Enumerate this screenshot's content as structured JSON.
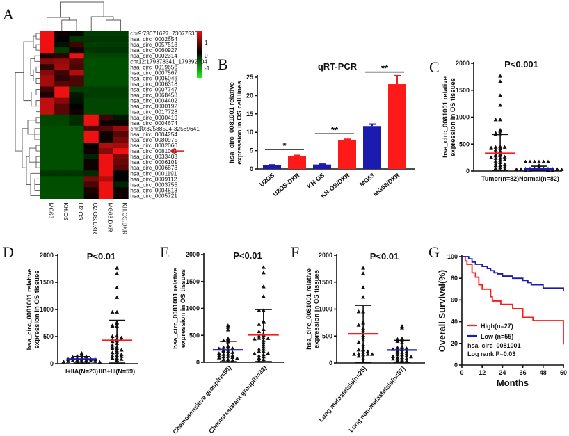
{
  "panels": {
    "A": "A",
    "B": "B",
    "C": "C",
    "D": "D",
    "E": "E",
    "F": "F",
    "G": "G"
  },
  "chart_data": [
    {
      "id": "A",
      "type": "heatmap",
      "title": "",
      "columns": [
        "MG63",
        "KH.OS",
        "U2.OS",
        "U2.OS.DXR",
        "MG63.DXR",
        "KH.OS.DXR"
      ],
      "rows": [
        "chr9:73071627_73077536",
        "hsa_circ_0002654",
        "hsa_circ_0057518",
        "hsa_circ_0060927",
        "hsa_circ_0002314",
        "chr12:179378341_179392104",
        "hsa_circ_0019656",
        "hsa_circ_0007567",
        "hsa_circ_0005046",
        "hsa_circ_0006318",
        "hsa_circ_0007747",
        "hsa_circ_0068458",
        "hsa_circ_0004402",
        "hsa_circ_0000192",
        "hsa_circ_0017728",
        "hsa_circ_0000419",
        "hsa_circ_0004674",
        "chr10:32588594-32589641",
        "hsa_circ_0004254",
        "hsa_circ_0080975",
        "hsa_circ_0002060",
        "hsa_circ_0081001",
        "hsa_circ_0033403",
        "hsa_circ_0006101",
        "hsa_circ_0006873",
        "hsa_circ_0001191",
        "hsa_circ_0009112",
        "hsa_circ_0003755",
        "hsa_circ_0004513",
        "hsa_circ_0005721"
      ],
      "values": [
        [
          1.8,
          0.1,
          -0.1,
          -0.7,
          -0.7,
          -0.7
        ],
        [
          1.8,
          0.0,
          -0.6,
          -0.6,
          -0.6,
          -0.6
        ],
        [
          1.8,
          -0.2,
          0.4,
          -0.7,
          -0.7,
          -0.7
        ],
        [
          1.8,
          -0.7,
          0.1,
          -0.6,
          -0.6,
          -0.6
        ],
        [
          0.2,
          0.3,
          1.8,
          -0.8,
          -0.8,
          -0.8
        ],
        [
          0.9,
          1.0,
          0.6,
          -0.9,
          -0.9,
          -0.9
        ],
        [
          0.3,
          1.1,
          0.5,
          -0.9,
          -0.9,
          -0.9
        ],
        [
          0.9,
          0.4,
          1.2,
          -0.9,
          -0.9,
          -0.9
        ],
        [
          1.1,
          0.3,
          0.5,
          -0.9,
          -0.9,
          -0.9
        ],
        [
          1.1,
          0.6,
          0.5,
          -0.9,
          -0.9,
          -0.9
        ],
        [
          0.4,
          1.8,
          -0.7,
          -0.7,
          -0.7,
          -0.7
        ],
        [
          0.2,
          1.8,
          -0.3,
          -0.7,
          -0.7,
          -0.7
        ],
        [
          1.3,
          0.9,
          -0.2,
          -0.8,
          -0.8,
          -0.8
        ],
        [
          1.3,
          0.6,
          0.0,
          -0.8,
          -0.8,
          -0.8
        ],
        [
          1.3,
          0.6,
          0.1,
          -0.8,
          -0.8,
          -0.8
        ],
        [
          -0.8,
          -0.8,
          -0.5,
          1.8,
          0.4,
          -0.3
        ],
        [
          -0.8,
          -0.8,
          -0.5,
          1.8,
          0.1,
          0.1
        ],
        [
          -0.9,
          -0.9,
          -0.9,
          0.5,
          0.6,
          1.0
        ],
        [
          -0.9,
          -0.9,
          -0.9,
          1.6,
          0.1,
          0.6
        ],
        [
          -0.9,
          -0.9,
          -0.9,
          1.6,
          0.1,
          0.8
        ],
        [
          -0.9,
          -0.9,
          -0.9,
          0.0,
          1.2,
          1.1
        ],
        [
          -0.9,
          -0.9,
          -0.9,
          0.1,
          0.9,
          1.6
        ],
        [
          -0.9,
          -0.9,
          -0.9,
          -0.4,
          1.6,
          0.8
        ],
        [
          -0.9,
          -0.9,
          -0.9,
          0.1,
          1.6,
          0.7
        ],
        [
          -0.9,
          -0.9,
          -0.9,
          0.1,
          1.6,
          0.6
        ],
        [
          -0.6,
          -0.6,
          -0.6,
          -0.5,
          1.9,
          0.0
        ],
        [
          -0.9,
          -0.9,
          -0.9,
          0.8,
          1.2,
          0.0
        ],
        [
          -0.9,
          -0.9,
          -0.9,
          0.5,
          1.8,
          -0.4
        ],
        [
          -0.9,
          -0.9,
          -0.9,
          0.2,
          1.8,
          0.1
        ],
        [
          -0.9,
          -0.9,
          -0.9,
          0.1,
          1.8,
          0.1
        ]
      ],
      "colorbar": {
        "ticks": [
          "1",
          "0",
          "-1"
        ],
        "range": [
          -1.5,
          1.8
        ],
        "low": "#22ee22",
        "mid": "#000000",
        "high": "#ee1111"
      },
      "highlighted_row": "hsa_circ_0081001"
    },
    {
      "id": "B",
      "type": "bar",
      "title": "qRT-PCR",
      "ylabel": [
        "hsa_circ_0081001 relative",
        "expression in OS cell lines"
      ],
      "xlabel": "",
      "categories": [
        "U2OS",
        "U2OS-DXR",
        "KH-OS",
        "KH-OS/DXR",
        "MG63",
        "MG63/DXR"
      ],
      "values": [
        1.0,
        3.6,
        1.2,
        7.9,
        11.7,
        23.1
      ],
      "errors": [
        0.1,
        0.1,
        0.1,
        0.2,
        0.5,
        2.3
      ],
      "colors": [
        "#1b1bb0",
        "#ff1a1a",
        "#1b1bb0",
        "#ff1a1a",
        "#1b1bb0",
        "#ff1a1a"
      ],
      "ylim": [
        0,
        27
      ],
      "yticks": [
        "0",
        "5",
        "10",
        "15",
        "20",
        "25"
      ],
      "significance": [
        {
          "pair": [
            0,
            1
          ],
          "label": "*",
          "level": 5.3
        },
        {
          "pair": [
            2,
            3
          ],
          "label": "**",
          "level": 9.6
        },
        {
          "pair": [
            4,
            5
          ],
          "label": "**",
          "level": 26.4
        }
      ]
    },
    {
      "id": "C",
      "type": "scatter",
      "title": "P<0.001",
      "ylabel": [
        "hsa_circ_0081001 relative",
        "expression in OS tissues"
      ],
      "categories": [
        "Tumor(n=82)",
        "Normal(n=82)"
      ],
      "means": [
        330,
        40
      ],
      "sd_upper": [
        680,
        90
      ],
      "mean_colors": [
        "#ff1a1a",
        "#1b1bb0"
      ],
      "ylim": [
        0,
        2000
      ],
      "yticks": [
        "0",
        "500",
        "1000",
        "1500",
        "2000"
      ],
      "highlights": [
        [
          1760,
          1660,
          1400,
          1220,
          950,
          950,
          760,
          740,
          700,
          690,
          680,
          450,
          440,
          440,
          430,
          420,
          300,
          280,
          250,
          240,
          200,
          120,
          100,
          60,
          30
        ],
        [
          170,
          170,
          170,
          170,
          170,
          170,
          100,
          60,
          40,
          30,
          20
        ]
      ]
    },
    {
      "id": "D",
      "type": "scatter",
      "title": "P<0.01",
      "ylabel": [
        "hsa_circ_0081001 relative",
        "expression in OS tissues"
      ],
      "categories": [
        "I+IIA(N=23)",
        "IIB+III(N=59)"
      ],
      "means": [
        85,
        430
      ],
      "sd_upper": [
        130,
        800
      ],
      "mean_colors": [
        "#1b1bb0",
        "#ff1a1a"
      ],
      "ylim": [
        0,
        2000
      ],
      "yticks": [
        "0",
        "500",
        "1000",
        "1500",
        "2000"
      ],
      "highlights": [
        [
          190,
          150,
          140,
          130,
          120,
          100,
          80,
          60,
          40,
          20
        ],
        [
          1760,
          1660,
          1400,
          1220,
          950,
          950,
          760,
          740,
          700,
          690,
          680,
          500,
          450,
          440,
          420,
          300,
          280,
          250,
          200,
          150,
          140,
          100,
          80
        ]
      ]
    },
    {
      "id": "E",
      "type": "scatter",
      "title": "P<0.01",
      "ylabel": [
        "hsa_circ_0081001 relative",
        "expression in OS tissues"
      ],
      "categories": [
        "Chemosensitive group(N=50)",
        "Chemoresistant group(N=32)"
      ],
      "means": [
        230,
        510
      ],
      "sd_upper": [
        390,
        980
      ],
      "mean_colors": [
        "#1b1bb0",
        "#ff1a1a"
      ],
      "ylim": [
        0,
        2000
      ],
      "yticks": [
        "0",
        "500",
        "1000",
        "1500",
        "2000"
      ],
      "highlights": [
        [
          680,
          650,
          600,
          440,
          420,
          400,
          380,
          300,
          280,
          250,
          200,
          150,
          120,
          100,
          80,
          50,
          20
        ],
        [
          1760,
          1660,
          1400,
          1220,
          960,
          960,
          760,
          740,
          700,
          500,
          450,
          440,
          430,
          240,
          200,
          160,
          140,
          100,
          50,
          30
        ]
      ]
    },
    {
      "id": "F",
      "type": "scatter",
      "title": "P<0.01",
      "ylabel": [
        "hsa_circ_0081001 relative",
        "expression  in OS tissues"
      ],
      "categories": [
        "Lung metastatsis(n=25)",
        "Lung non-metastatsis(n=57)"
      ],
      "means": [
        540,
        240
      ],
      "sd_upper": [
        1070,
        420
      ],
      "mean_colors": [
        "#ff1a1a",
        "#1b1bb0"
      ],
      "ylim": [
        0,
        2000
      ],
      "yticks": [
        "0",
        "500",
        "1000",
        "1500",
        "2000"
      ],
      "highlights": [
        [
          1760,
          1660,
          1400,
          1220,
          950,
          950,
          760,
          740,
          700,
          240,
          240,
          200,
          160,
          160,
          160,
          150,
          30,
          20
        ],
        [
          680,
          650,
          450,
          440,
          420,
          400,
          380,
          300,
          280,
          250,
          200,
          150,
          120,
          100,
          80,
          50,
          20
        ]
      ]
    },
    {
      "id": "G",
      "type": "line",
      "title": "",
      "xlabel": "Months",
      "ylabel": "Overall Survival(%)",
      "xlim": [
        0,
        60
      ],
      "ylim": [
        0,
        100
      ],
      "xticks": [
        "0",
        "12",
        "24",
        "36",
        "48",
        "60"
      ],
      "yticks": [
        "0",
        "20",
        "40",
        "60",
        "80",
        "100"
      ],
      "series": [
        {
          "name": "High(n=27)",
          "color": "#ff1a1a",
          "x": [
            0,
            2,
            2,
            3,
            3,
            6,
            6,
            8,
            8,
            10,
            10,
            12,
            12,
            17,
            17,
            18,
            18,
            20,
            20,
            23,
            23,
            30,
            30,
            36,
            36,
            42,
            42,
            60,
            60
          ],
          "y": [
            100,
            100,
            96,
            96,
            93,
            93,
            85,
            85,
            81,
            81,
            74,
            74,
            70,
            70,
            63,
            63,
            59,
            59,
            59,
            59,
            56,
            56,
            52,
            52,
            44,
            44,
            41,
            41,
            19
          ]
        },
        {
          "name": "Low (n=55)",
          "color": "#1b1bb0",
          "x": [
            0,
            4,
            4,
            6,
            6,
            8,
            8,
            12,
            12,
            15,
            15,
            17,
            17,
            19,
            19,
            21,
            21,
            24,
            24,
            30,
            30,
            36,
            36,
            39,
            39,
            41,
            41,
            48,
            48,
            60,
            60
          ],
          "y": [
            100,
            100,
            98,
            98,
            95,
            95,
            93,
            93,
            91,
            91,
            89,
            89,
            87,
            87,
            85,
            85,
            84,
            84,
            82,
            82,
            80,
            80,
            78,
            78,
            76,
            76,
            74,
            74,
            71,
            71,
            68
          ]
        }
      ],
      "legend_position": "bottom-left",
      "annotations": [
        "hsa_circ_0081001",
        "Log rank P=0.03"
      ]
    }
  ]
}
